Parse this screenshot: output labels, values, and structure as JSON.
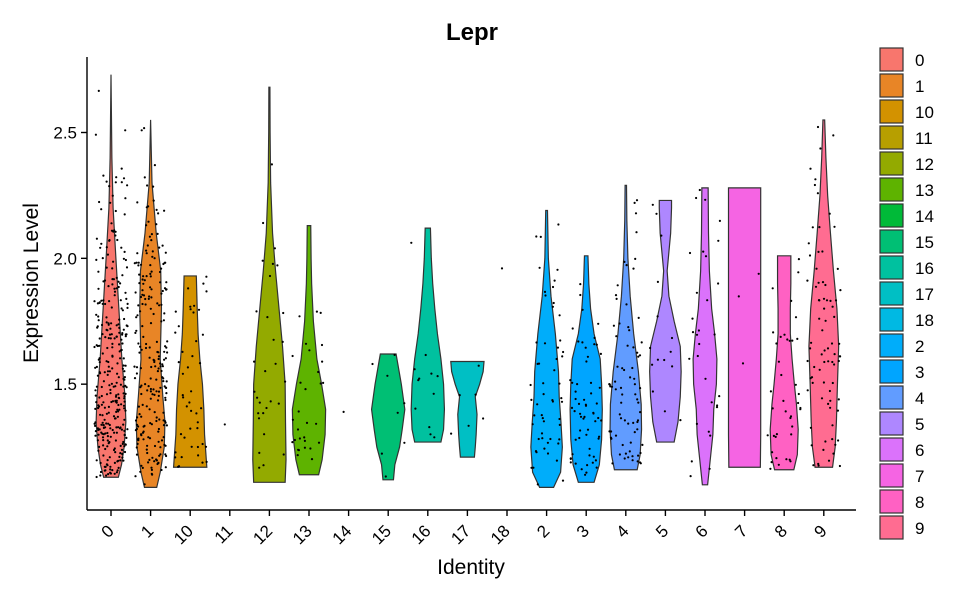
{
  "chart_data": {
    "type": "violin",
    "title": "Lepr",
    "xlabel": "Identity",
    "ylabel": "Expression Level",
    "ylim": [
      1.0,
      2.8
    ],
    "yticks": [
      1.5,
      2.0,
      2.5
    ],
    "ytick_labels": [
      "1.5",
      "2.0",
      "2.5"
    ],
    "legend_position": "right",
    "categories": [
      "0",
      "1",
      "10",
      "11",
      "12",
      "13",
      "14",
      "15",
      "16",
      "17",
      "18",
      "2",
      "3",
      "4",
      "5",
      "6",
      "7",
      "8",
      "9"
    ],
    "colors": [
      "#F8766D",
      "#E88526",
      "#D39200",
      "#B79F00",
      "#93AA00",
      "#5EB300",
      "#00BA38",
      "#00BF74",
      "#00C19F",
      "#00BFC4",
      "#00B9E3",
      "#00ADFA",
      "#00A5FF",
      "#619CFF",
      "#AE87FF",
      "#DB72FB",
      "#F564E3",
      "#FF61C3",
      "#FF6C91"
    ],
    "legend_order": [
      "0",
      "1",
      "10",
      "11",
      "12",
      "13",
      "14",
      "15",
      "16",
      "17",
      "18",
      "2",
      "3",
      "4",
      "5",
      "6",
      "7",
      "8",
      "9"
    ],
    "groups": [
      {
        "id": "0",
        "min": 1.13,
        "max": 2.73,
        "shape": [
          [
            1.13,
            0.42
          ],
          [
            1.18,
            0.6
          ],
          [
            1.25,
            0.75
          ],
          [
            1.35,
            0.85
          ],
          [
            1.45,
            0.8
          ],
          [
            1.6,
            0.62
          ],
          [
            1.8,
            0.45
          ],
          [
            2.0,
            0.28
          ],
          [
            2.2,
            0.12
          ],
          [
            2.4,
            0.05
          ],
          [
            2.73,
            0.0
          ]
        ],
        "points": 320
      },
      {
        "id": "1",
        "min": 1.09,
        "max": 2.55,
        "shape": [
          [
            1.09,
            0.35
          ],
          [
            1.15,
            0.55
          ],
          [
            1.25,
            0.78
          ],
          [
            1.35,
            0.82
          ],
          [
            1.45,
            0.7
          ],
          [
            1.6,
            0.55
          ],
          [
            1.8,
            0.62
          ],
          [
            1.95,
            0.58
          ],
          [
            2.1,
            0.32
          ],
          [
            2.3,
            0.08
          ],
          [
            2.55,
            0.0
          ]
        ],
        "points": 230
      },
      {
        "id": "10",
        "min": 1.17,
        "max": 1.93,
        "shape": [
          [
            1.17,
            0.95
          ],
          [
            1.22,
            0.9
          ],
          [
            1.3,
            0.82
          ],
          [
            1.4,
            0.78
          ],
          [
            1.5,
            0.7
          ],
          [
            1.6,
            0.55
          ],
          [
            1.7,
            0.45
          ],
          [
            1.8,
            0.4
          ],
          [
            1.93,
            0.35
          ]
        ],
        "points": 45
      },
      {
        "id": "11",
        "min": null,
        "max": null,
        "shape": [],
        "points": 1,
        "single_point": 1.34
      },
      {
        "id": "12",
        "min": 1.11,
        "max": 2.68,
        "shape": [
          [
            1.11,
            0.9
          ],
          [
            1.2,
            0.95
          ],
          [
            1.35,
            0.92
          ],
          [
            1.5,
            0.9
          ],
          [
            1.65,
            0.75
          ],
          [
            1.8,
            0.55
          ],
          [
            1.95,
            0.35
          ],
          [
            2.1,
            0.18
          ],
          [
            2.3,
            0.07
          ],
          [
            2.5,
            0.04
          ],
          [
            2.68,
            0.03
          ]
        ],
        "points": 30
      },
      {
        "id": "13",
        "min": 1.14,
        "max": 2.13,
        "shape": [
          [
            1.14,
            0.55
          ],
          [
            1.2,
            0.75
          ],
          [
            1.3,
            0.92
          ],
          [
            1.4,
            0.95
          ],
          [
            1.5,
            0.72
          ],
          [
            1.6,
            0.45
          ],
          [
            1.75,
            0.25
          ],
          [
            1.9,
            0.15
          ],
          [
            2.0,
            0.12
          ],
          [
            2.13,
            0.1
          ]
        ],
        "points": 30
      },
      {
        "id": "14",
        "min": null,
        "max": null,
        "shape": [],
        "points": 1,
        "single_point": 1.39
      },
      {
        "id": "15",
        "min": 1.12,
        "max": 1.62,
        "shape": [
          [
            1.12,
            0.3
          ],
          [
            1.18,
            0.38
          ],
          [
            1.25,
            0.65
          ],
          [
            1.32,
            0.8
          ],
          [
            1.4,
            0.95
          ],
          [
            1.5,
            0.75
          ],
          [
            1.58,
            0.55
          ],
          [
            1.62,
            0.45
          ]
        ],
        "points": 8
      },
      {
        "id": "16",
        "min": 1.27,
        "max": 2.12,
        "shape": [
          [
            1.27,
            0.75
          ],
          [
            1.32,
            0.9
          ],
          [
            1.4,
            0.95
          ],
          [
            1.5,
            0.9
          ],
          [
            1.6,
            0.75
          ],
          [
            1.7,
            0.55
          ],
          [
            1.8,
            0.4
          ],
          [
            1.9,
            0.28
          ],
          [
            2.0,
            0.2
          ],
          [
            2.12,
            0.15
          ]
        ],
        "points": 12
      },
      {
        "id": "17",
        "min": 1.21,
        "max": 1.59,
        "shape": [
          [
            1.21,
            0.4
          ],
          [
            1.25,
            0.45
          ],
          [
            1.3,
            0.5
          ],
          [
            1.38,
            0.55
          ],
          [
            1.45,
            0.45
          ],
          [
            1.5,
            0.7
          ],
          [
            1.55,
            0.9
          ],
          [
            1.59,
            0.95
          ]
        ],
        "points": 6
      },
      {
        "id": "18",
        "min": null,
        "max": null,
        "shape": [],
        "points": 1,
        "single_point": 1.96
      },
      {
        "id": "2",
        "min": 1.09,
        "max": 2.19,
        "shape": [
          [
            1.09,
            0.4
          ],
          [
            1.15,
            0.8
          ],
          [
            1.25,
            0.9
          ],
          [
            1.35,
            0.82
          ],
          [
            1.45,
            0.72
          ],
          [
            1.55,
            0.68
          ],
          [
            1.7,
            0.5
          ],
          [
            1.85,
            0.25
          ],
          [
            2.0,
            0.1
          ],
          [
            2.19,
            0.05
          ]
        ],
        "points": 55
      },
      {
        "id": "3",
        "min": 1.11,
        "max": 2.01,
        "shape": [
          [
            1.11,
            0.45
          ],
          [
            1.18,
            0.75
          ],
          [
            1.28,
            0.88
          ],
          [
            1.4,
            0.92
          ],
          [
            1.5,
            0.88
          ],
          [
            1.6,
            0.8
          ],
          [
            1.7,
            0.45
          ],
          [
            1.8,
            0.25
          ],
          [
            1.9,
            0.15
          ],
          [
            2.01,
            0.1
          ]
        ],
        "points": 60
      },
      {
        "id": "4",
        "min": 1.16,
        "max": 2.29,
        "shape": [
          [
            1.16,
            0.65
          ],
          [
            1.22,
            0.82
          ],
          [
            1.32,
            0.9
          ],
          [
            1.42,
            0.88
          ],
          [
            1.55,
            0.72
          ],
          [
            1.7,
            0.45
          ],
          [
            1.85,
            0.25
          ],
          [
            2.0,
            0.12
          ],
          [
            2.15,
            0.06
          ],
          [
            2.29,
            0.04
          ]
        ],
        "points": 75
      },
      {
        "id": "5",
        "min": 1.27,
        "max": 2.23,
        "shape": [
          [
            1.27,
            0.5
          ],
          [
            1.35,
            0.72
          ],
          [
            1.45,
            0.85
          ],
          [
            1.55,
            0.9
          ],
          [
            1.65,
            0.85
          ],
          [
            1.75,
            0.5
          ],
          [
            1.85,
            0.2
          ],
          [
            1.95,
            0.1
          ],
          [
            2.1,
            0.3
          ],
          [
            2.2,
            0.35
          ],
          [
            2.23,
            0.35
          ]
        ],
        "points": 15
      },
      {
        "id": "6",
        "min": 1.1,
        "max": 2.28,
        "shape": [
          [
            1.1,
            0.15
          ],
          [
            1.2,
            0.3
          ],
          [
            1.3,
            0.45
          ],
          [
            1.4,
            0.5
          ],
          [
            1.5,
            0.65
          ],
          [
            1.6,
            0.68
          ],
          [
            1.7,
            0.55
          ],
          [
            1.8,
            0.38
          ],
          [
            1.95,
            0.25
          ],
          [
            2.1,
            0.2
          ],
          [
            2.28,
            0.18
          ]
        ],
        "points": 30
      },
      {
        "id": "7",
        "min": 1.17,
        "max": 2.28,
        "shape": [
          [
            1.17,
            0.9
          ],
          [
            1.3,
            0.92
          ],
          [
            1.5,
            0.92
          ],
          [
            1.7,
            0.92
          ],
          [
            1.9,
            0.92
          ],
          [
            2.1,
            0.92
          ],
          [
            2.28,
            0.92
          ]
        ],
        "points": 3
      },
      {
        "id": "8",
        "min": 1.16,
        "max": 2.01,
        "shape": [
          [
            1.16,
            0.55
          ],
          [
            1.22,
            0.75
          ],
          [
            1.32,
            0.8
          ],
          [
            1.42,
            0.7
          ],
          [
            1.5,
            0.58
          ],
          [
            1.6,
            0.45
          ],
          [
            1.7,
            0.35
          ],
          [
            1.8,
            0.35
          ],
          [
            1.9,
            0.38
          ],
          [
            2.01,
            0.38
          ]
        ],
        "points": 40
      },
      {
        "id": "9",
        "min": 1.17,
        "max": 2.55,
        "shape": [
          [
            1.17,
            0.5
          ],
          [
            1.25,
            0.65
          ],
          [
            1.35,
            0.72
          ],
          [
            1.5,
            0.78
          ],
          [
            1.65,
            0.85
          ],
          [
            1.8,
            0.75
          ],
          [
            1.95,
            0.55
          ],
          [
            2.1,
            0.38
          ],
          [
            2.25,
            0.22
          ],
          [
            2.4,
            0.12
          ],
          [
            2.55,
            0.05
          ]
        ],
        "points": 80
      }
    ]
  }
}
